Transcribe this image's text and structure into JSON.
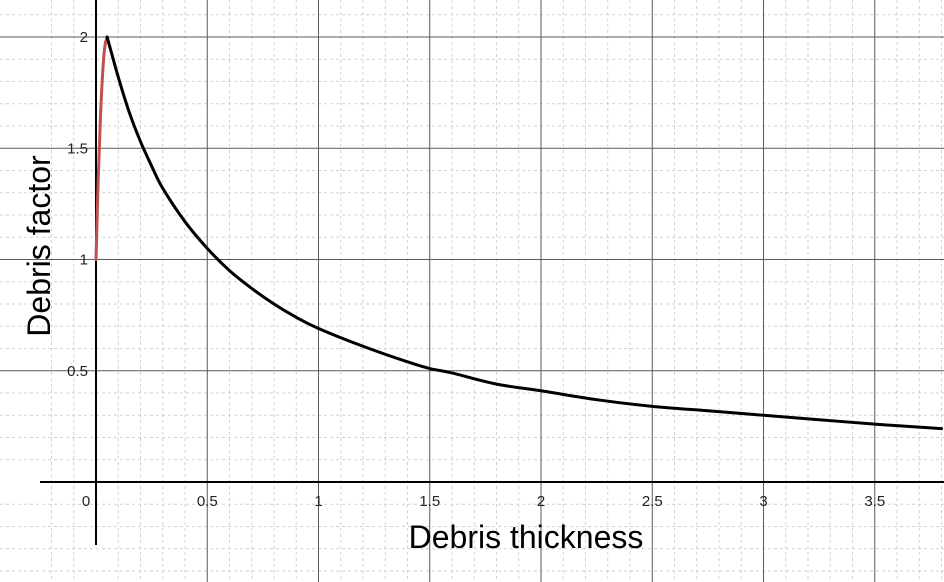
{
  "chart_data": {
    "type": "line",
    "xlabel": "Debris thickness",
    "ylabel": "Debris factor",
    "xlim": [
      -0.25,
      3.8
    ],
    "ylim": [
      -0.25,
      2.15
    ],
    "x_ticks": [
      0,
      0.5,
      1,
      1.5,
      2,
      2.5,
      3,
      3.5
    ],
    "x_tick_labels": [
      "0",
      "0.5",
      "1",
      "1.5",
      "2",
      "2.5",
      "3",
      "3.5"
    ],
    "y_ticks": [
      0.5,
      1,
      1.5,
      2
    ],
    "y_tick_labels": [
      "0.5",
      "1",
      "1.5",
      "2"
    ],
    "grid": true,
    "series": [
      {
        "color": "#c0504d",
        "x": [
          0,
          0.01,
          0.02,
          0.03,
          0.04,
          0.05
        ],
        "y": [
          1.0,
          1.36,
          1.64,
          1.84,
          1.96,
          2.0
        ]
      },
      {
        "color": "#000000",
        "x": [
          0.05,
          0.1,
          0.15,
          0.2,
          0.25,
          0.3,
          0.4,
          0.5,
          0.6,
          0.7,
          0.8,
          0.9,
          1.0,
          1.2,
          1.4,
          1.5,
          1.6,
          1.8,
          2.0,
          2.25,
          2.5,
          2.75,
          3.0,
          3.25,
          3.5,
          3.8
        ],
        "y": [
          2.0,
          1.82,
          1.66,
          1.53,
          1.42,
          1.32,
          1.17,
          1.05,
          0.95,
          0.87,
          0.8,
          0.74,
          0.69,
          0.61,
          0.54,
          0.51,
          0.49,
          0.44,
          0.41,
          0.37,
          0.34,
          0.32,
          0.3,
          0.28,
          0.26,
          0.24
        ]
      }
    ]
  }
}
